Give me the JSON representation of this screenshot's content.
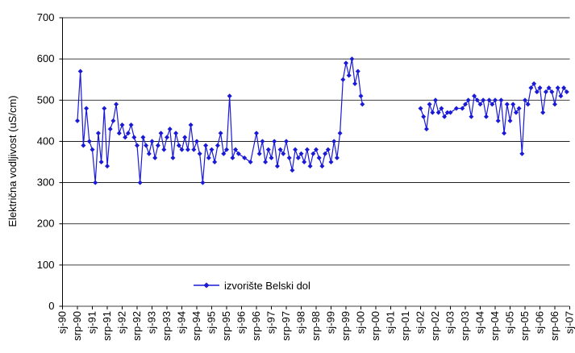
{
  "chart_data": {
    "type": "line",
    "y_label": "Električna vodljivost (uS/cm)",
    "ylim": [
      0,
      700
    ],
    "yticks": [
      0,
      100,
      200,
      300,
      400,
      500,
      600,
      700
    ],
    "grid": true,
    "xlim": [
      1990,
      2007
    ],
    "xticks": [
      {
        "value": 1990,
        "label": "sj-90"
      },
      {
        "value": 1990.5,
        "label": "srp-90"
      },
      {
        "value": 1991,
        "label": "sj-91"
      },
      {
        "value": 1991.5,
        "label": "srp-91"
      },
      {
        "value": 1992,
        "label": "sj-92"
      },
      {
        "value": 1992.5,
        "label": "srp-92"
      },
      {
        "value": 1993,
        "label": "sj-93"
      },
      {
        "value": 1993.5,
        "label": "srp-93"
      },
      {
        "value": 1994,
        "label": "sj-94"
      },
      {
        "value": 1994.5,
        "label": "srp-94"
      },
      {
        "value": 1995,
        "label": "sj-95"
      },
      {
        "value": 1995.5,
        "label": "srp-95"
      },
      {
        "value": 1996,
        "label": "sj-96"
      },
      {
        "value": 1996.5,
        "label": "srp-96"
      },
      {
        "value": 1997,
        "label": "sj-97"
      },
      {
        "value": 1997.5,
        "label": "srp-97"
      },
      {
        "value": 1998,
        "label": "sj-98"
      },
      {
        "value": 1998.5,
        "label": "srp-98"
      },
      {
        "value": 1999,
        "label": "sj-99"
      },
      {
        "value": 1999.5,
        "label": "srp-99"
      },
      {
        "value": 2000,
        "label": "sj-00"
      },
      {
        "value": 2000.5,
        "label": "srp-00"
      },
      {
        "value": 2001,
        "label": "sj-01"
      },
      {
        "value": 2001.5,
        "label": "srp-01"
      },
      {
        "value": 2002,
        "label": "sj-02"
      },
      {
        "value": 2002.5,
        "label": "srp-02"
      },
      {
        "value": 2003,
        "label": "sj-03"
      },
      {
        "value": 2003.5,
        "label": "srp-03"
      },
      {
        "value": 2004,
        "label": "sj-04"
      },
      {
        "value": 2004.5,
        "label": "srp-04"
      },
      {
        "value": 2005,
        "label": "sj-05"
      },
      {
        "value": 2005.5,
        "label": "srp-05"
      },
      {
        "value": 2006,
        "label": "sj-06"
      },
      {
        "value": 2006.5,
        "label": "srp-06"
      },
      {
        "value": 2007,
        "label": "sj-07"
      }
    ],
    "x": [
      1990.5,
      1990.6,
      1990.7,
      1990.8,
      1990.9,
      1991.0,
      1991.1,
      1991.2,
      1991.3,
      1991.4,
      1991.5,
      1991.6,
      1991.7,
      1991.8,
      1991.9,
      1992.0,
      1992.1,
      1992.2,
      1992.3,
      1992.4,
      1992.5,
      1992.6,
      1992.7,
      1992.8,
      1992.9,
      1993.0,
      1993.1,
      1993.2,
      1993.3,
      1993.4,
      1993.5,
      1993.6,
      1993.7,
      1993.8,
      1993.9,
      1994.0,
      1994.1,
      1994.2,
      1994.3,
      1994.4,
      1994.5,
      1994.6,
      1994.7,
      1994.8,
      1994.9,
      1995.0,
      1995.1,
      1995.2,
      1995.3,
      1995.4,
      1995.5,
      1995.6,
      1995.7,
      1995.8,
      1995.9,
      1996.1,
      1996.3,
      1996.5,
      1996.6,
      1996.7,
      1996.8,
      1996.9,
      1997.0,
      1997.1,
      1997.2,
      1997.3,
      1997.4,
      1997.5,
      1997.6,
      1997.7,
      1997.8,
      1997.9,
      1998.0,
      1998.1,
      1998.2,
      1998.3,
      1998.4,
      1998.5,
      1998.6,
      1998.7,
      1998.8,
      1998.9,
      1999.0,
      1999.1,
      1999.2,
      1999.3,
      1999.4,
      1999.5,
      1999.6,
      1999.7,
      1999.8,
      1999.9,
      2000.0,
      2000.05,
      2001.0,
      2002.0,
      2002.1,
      2002.2,
      2002.3,
      2002.4,
      2002.5,
      2002.6,
      2002.7,
      2002.8,
      2002.9,
      2003.0,
      2003.2,
      2003.4,
      2003.5,
      2003.6,
      2003.7,
      2003.8,
      2003.9,
      2004.0,
      2004.1,
      2004.2,
      2004.3,
      2004.4,
      2004.5,
      2004.6,
      2004.7,
      2004.8,
      2004.9,
      2005.0,
      2005.1,
      2005.2,
      2005.3,
      2005.4,
      2005.5,
      2005.6,
      2005.7,
      2005.8,
      2005.9,
      2006.0,
      2006.1,
      2006.2,
      2006.3,
      2006.4,
      2006.5,
      2006.6,
      2006.7,
      2006.8,
      2006.9
    ],
    "series": [
      {
        "name": "izvorište Belski dol",
        "color": "#1a1ad6",
        "values": [
          450,
          570,
          390,
          480,
          400,
          380,
          300,
          420,
          350,
          480,
          340,
          430,
          450,
          490,
          420,
          440,
          410,
          420,
          440,
          410,
          390,
          300,
          410,
          390,
          370,
          400,
          360,
          390,
          420,
          380,
          410,
          430,
          360,
          420,
          390,
          380,
          410,
          380,
          440,
          380,
          400,
          370,
          300,
          390,
          360,
          380,
          350,
          390,
          420,
          370,
          380,
          510,
          360,
          380,
          370,
          360,
          350,
          420,
          370,
          400,
          350,
          380,
          360,
          400,
          340,
          380,
          370,
          400,
          360,
          330,
          380,
          360,
          370,
          350,
          380,
          340,
          370,
          380,
          360,
          340,
          370,
          380,
          350,
          400,
          360,
          420,
          550,
          590,
          560,
          600,
          540,
          570,
          510,
          490,
          null,
          480,
          460,
          430,
          490,
          470,
          500,
          470,
          480,
          460,
          470,
          470,
          480,
          480,
          490,
          500,
          460,
          510,
          500,
          490,
          500,
          460,
          500,
          490,
          500,
          450,
          500,
          420,
          490,
          450,
          490,
          470,
          480,
          370,
          500,
          490,
          530,
          540,
          520,
          530,
          470,
          520,
          530,
          520,
          490,
          530,
          510,
          530,
          520
        ]
      }
    ]
  }
}
